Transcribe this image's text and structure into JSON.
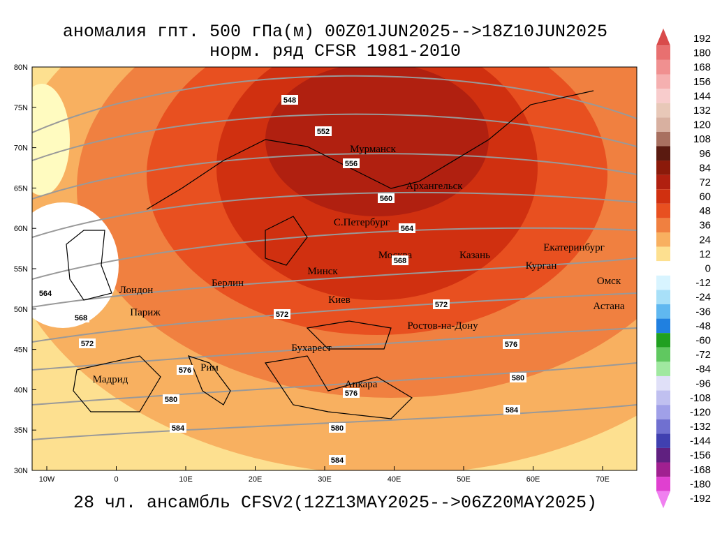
{
  "header": {
    "title": [
      "аномалия гпт. 500 гПа(м) 00Z01JUN2025-->18Z10JUN2025",
      "норм. ряд CFSR 1981-2010"
    ]
  },
  "footer": "28 чл. ансамбль CFSV2(12Z13MAY2025-->06Z20MAY2025)",
  "lat_labels": [
    "80N",
    "75N",
    "70N",
    "65N",
    "60N",
    "55N",
    "50N",
    "45N",
    "40N",
    "35N",
    "30N"
  ],
  "lon_labels": [
    "10W",
    "0",
    "10E",
    "20E",
    "30E",
    "40E",
    "50E",
    "60E",
    "70E"
  ],
  "cities": [
    "Мурманск",
    "Архангельск",
    "С.Петербург",
    "Москва",
    "Казань",
    "Екатеринбург",
    "Курган",
    "Омск",
    "Астана",
    "Минск",
    "Берлин",
    "Лондон",
    "Париж",
    "Киев",
    "Ростов-на-Дону",
    "Бухарест",
    "Рим",
    "Мадрид",
    "Анкара"
  ],
  "contour_labels": [
    548,
    552,
    556,
    560,
    564,
    568,
    572,
    572,
    576,
    580,
    584,
    576,
    580,
    584,
    584,
    580,
    576,
    572,
    568,
    564
  ],
  "colorbar": {
    "levels": [
      192,
      180,
      168,
      156,
      144,
      132,
      120,
      108,
      96,
      84,
      72,
      60,
      48,
      36,
      24,
      12,
      0,
      -12,
      -24,
      -36,
      -48,
      -60,
      -72,
      -84,
      -96,
      -108,
      -120,
      -132,
      -144,
      -156,
      -168,
      -180,
      -192
    ],
    "colors": [
      "#d94b4b",
      "#e87070",
      "#f09090",
      "#f5b0b0",
      "#f8cccc",
      "#e8c8b8",
      "#d8b0a0",
      "#a87060",
      "#5a1a10",
      "#8b1a0a",
      "#b02010",
      "#d03010",
      "#e85020",
      "#f08040",
      "#f8b060",
      "#fde090",
      "#ffffff",
      "#d8f4ff",
      "#a8e0f8",
      "#60b8f0",
      "#2080e0",
      "#20a020",
      "#60c860",
      "#a0e8a0",
      "#e0e0f8",
      "#c0c0f0",
      "#a0a0e8",
      "#7070d0",
      "#4040b0",
      "#602080",
      "#a02090",
      "#e040d0",
      "#f080f0"
    ]
  }
}
